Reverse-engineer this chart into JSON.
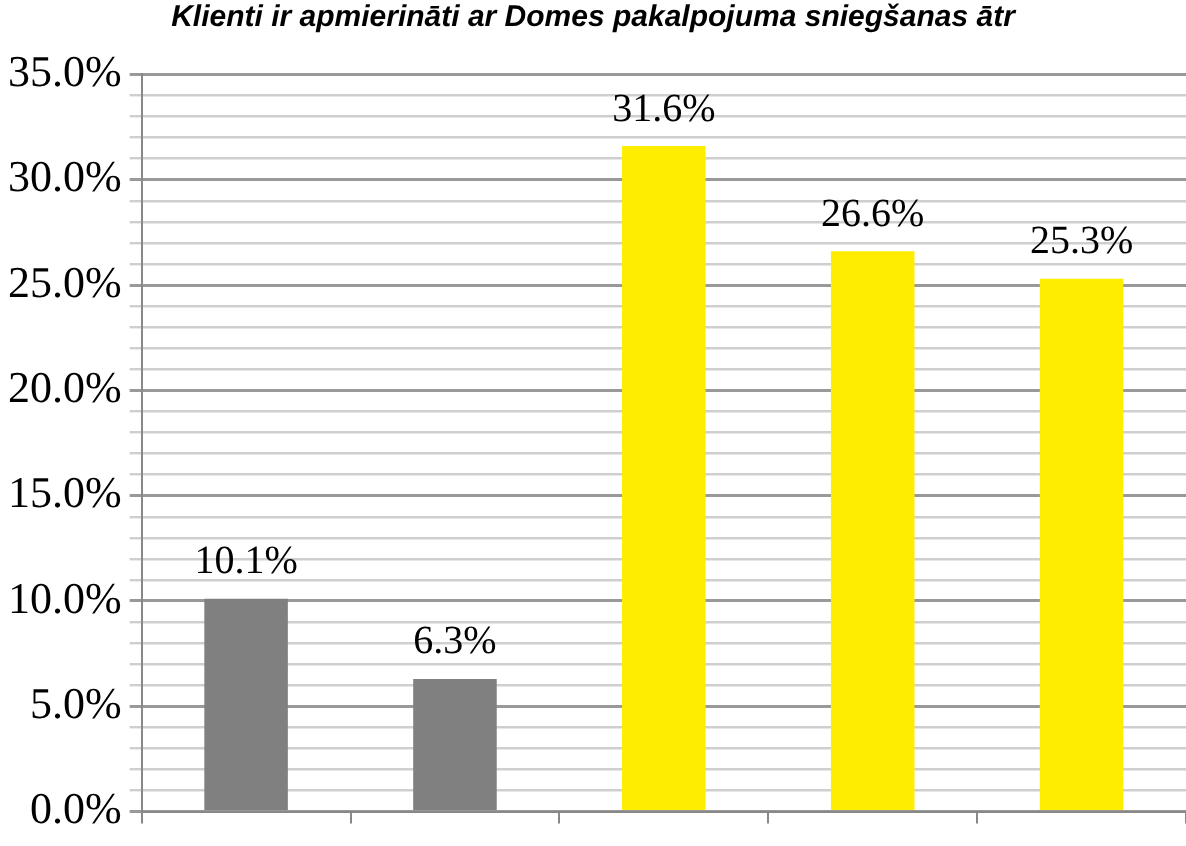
{
  "chart_data": {
    "type": "bar",
    "title": "Klienti ir apmierināti ar Domes pakalpojuma sniegšanas ātr",
    "categories": [
      null,
      null,
      null,
      null,
      null
    ],
    "values": [
      10.1,
      6.3,
      31.6,
      26.6,
      25.3
    ],
    "colors": [
      "#808080",
      "#808080",
      "#ffed00",
      "#ffed00",
      "#ffed00"
    ],
    "value_labels": [
      "10.1%",
      "6.3%",
      "31.6%",
      "26.6%",
      "25.3%"
    ],
    "ylim": [
      0,
      35
    ],
    "yticks": [
      {
        "value": 0,
        "label": "0.0%"
      },
      {
        "value": 1,
        "label": null
      },
      {
        "value": 2,
        "label": null
      },
      {
        "value": 3,
        "label": null
      },
      {
        "value": 4,
        "label": null
      },
      {
        "value": 5,
        "label": "5.0%"
      },
      {
        "value": 6,
        "label": null
      },
      {
        "value": 7,
        "label": null
      },
      {
        "value": 8,
        "label": null
      },
      {
        "value": 9,
        "label": null
      },
      {
        "value": 10,
        "label": "10.0%"
      },
      {
        "value": 11,
        "label": null
      },
      {
        "value": 12,
        "label": null
      },
      {
        "value": 13,
        "label": null
      },
      {
        "value": 14,
        "label": null
      },
      {
        "value": 15,
        "label": "15.0%"
      },
      {
        "value": 16,
        "label": null
      },
      {
        "value": 17,
        "label": null
      },
      {
        "value": 18,
        "label": null
      },
      {
        "value": 19,
        "label": null
      },
      {
        "value": 20,
        "label": "20.0%"
      },
      {
        "value": 21,
        "label": null
      },
      {
        "value": 22,
        "label": null
      },
      {
        "value": 23,
        "label": null
      },
      {
        "value": 24,
        "label": null
      },
      {
        "value": 25,
        "label": "25.0%"
      },
      {
        "value": 26,
        "label": null
      },
      {
        "value": 27,
        "label": null
      },
      {
        "value": 28,
        "label": null
      },
      {
        "value": 29,
        "label": null
      },
      {
        "value": 30,
        "label": "30.0%"
      },
      {
        "value": 31,
        "label": null
      },
      {
        "value": 32,
        "label": null
      },
      {
        "value": 33,
        "label": null
      },
      {
        "value": 34,
        "label": null
      },
      {
        "value": 35,
        "label": "35.0%"
      }
    ],
    "grid": "y",
    "legend": false
  }
}
